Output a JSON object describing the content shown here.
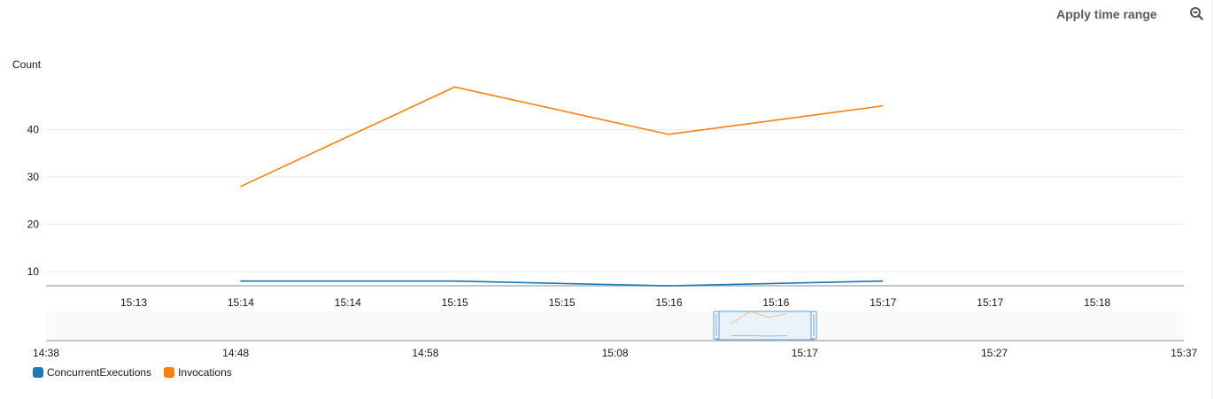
{
  "toolbar": {
    "apply_time_range_label": "Apply time range",
    "zoom_icon": "zoom-out-icon"
  },
  "colors": {
    "concurrent": "#1f77b4",
    "invocations": "#ff7f0e",
    "navigator_handle": "#5b9bd5",
    "navigator_fill": "#eaf3fb"
  },
  "chart_data": {
    "type": "line",
    "ylabel": "Count",
    "ylim": [
      7,
      52
    ],
    "yticks": [
      10,
      20,
      30,
      40
    ],
    "grid": true,
    "x": [
      "15:14",
      "15:15",
      "15:16",
      "15:17"
    ],
    "series": [
      {
        "name": "ConcurrentExecutions",
        "values": [
          8,
          8,
          7,
          8
        ]
      },
      {
        "name": "Invocations",
        "values": [
          28,
          49,
          39,
          45
        ]
      }
    ],
    "x_tick_labels": [
      "15:13",
      "15:14",
      "15:14",
      "15:15",
      "15:15",
      "15:16",
      "15:16",
      "15:17",
      "15:17",
      "15:18"
    ],
    "legend_position": "bottom-left",
    "navigator": {
      "tick_labels": [
        "14:38",
        "14:48",
        "14:58",
        "15:08",
        "15:17",
        "15:27",
        "15:37"
      ]
    }
  }
}
